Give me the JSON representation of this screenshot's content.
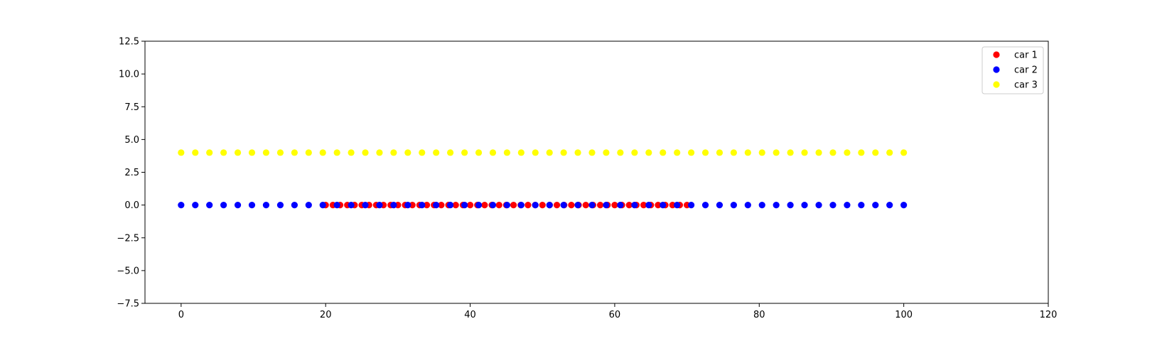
{
  "chart_data": {
    "type": "scatter",
    "title": "",
    "xlabel": "",
    "ylabel": "",
    "xlim": [
      -5,
      120
    ],
    "ylim": [
      -7.5,
      12.5
    ],
    "xticks": [
      0,
      20,
      40,
      60,
      80,
      100,
      120
    ],
    "yticks": [
      -7.5,
      -5.0,
      -2.5,
      0.0,
      2.5,
      5.0,
      7.5,
      10.0,
      12.5
    ],
    "xtick_labels": [
      "0",
      "20",
      "40",
      "60",
      "80",
      "100",
      "120"
    ],
    "ytick_labels": [
      "−7.5",
      "−5.0",
      "−2.5",
      "0.0",
      "2.5",
      "5.0",
      "7.5",
      "10.0",
      "12.5"
    ],
    "grid": false,
    "legend_position": "top-right",
    "series": [
      {
        "name": "car 1",
        "color": "#ff0000",
        "x": [
          20,
          21,
          22,
          23,
          24,
          25,
          26,
          27,
          28,
          29,
          30,
          31,
          32,
          33,
          34,
          35,
          36,
          37,
          38,
          39,
          40,
          41,
          42,
          43,
          44,
          45,
          46,
          47,
          48,
          49,
          50,
          51,
          52,
          53,
          54,
          55,
          56,
          57,
          58,
          59,
          60,
          61,
          62,
          63,
          64,
          65,
          66,
          67,
          68,
          69,
          70
        ],
        "y": [
          0,
          0,
          0,
          0,
          0,
          0,
          0,
          0,
          0,
          0,
          0,
          0,
          0,
          0,
          0,
          0,
          0,
          0,
          0,
          0,
          0,
          0,
          0,
          0,
          0,
          0,
          0,
          0,
          0,
          0,
          0,
          0,
          0,
          0,
          0,
          0,
          0,
          0,
          0,
          0,
          0,
          0,
          0,
          0,
          0,
          0,
          0,
          0,
          0,
          0,
          0
        ]
      },
      {
        "name": "car 2",
        "color": "#0000ff",
        "x": [
          0,
          1.96,
          3.92,
          5.88,
          7.84,
          9.8,
          11.76,
          13.73,
          15.69,
          17.65,
          19.61,
          21.57,
          23.53,
          25.49,
          27.45,
          29.41,
          31.37,
          33.33,
          35.29,
          37.25,
          39.22,
          41.18,
          43.14,
          45.1,
          47.06,
          49.02,
          50.98,
          52.94,
          54.9,
          56.86,
          58.82,
          60.78,
          62.75,
          64.71,
          66.67,
          68.63,
          70.59,
          72.55,
          74.51,
          76.47,
          78.43,
          80.39,
          82.35,
          84.31,
          86.27,
          88.24,
          90.2,
          92.16,
          94.12,
          96.08,
          98.04,
          100
        ],
        "y": [
          0,
          0,
          0,
          0,
          0,
          0,
          0,
          0,
          0,
          0,
          0,
          0,
          0,
          0,
          0,
          0,
          0,
          0,
          0,
          0,
          0,
          0,
          0,
          0,
          0,
          0,
          0,
          0,
          0,
          0,
          0,
          0,
          0,
          0,
          0,
          0,
          0,
          0,
          0,
          0,
          0,
          0,
          0,
          0,
          0,
          0,
          0,
          0,
          0,
          0,
          0,
          0
        ]
      },
      {
        "name": "car 3",
        "color": "#ffff00",
        "x": [
          0,
          1.96,
          3.92,
          5.88,
          7.84,
          9.8,
          11.76,
          13.73,
          15.69,
          17.65,
          19.61,
          21.57,
          23.53,
          25.49,
          27.45,
          29.41,
          31.37,
          33.33,
          35.29,
          37.25,
          39.22,
          41.18,
          43.14,
          45.1,
          47.06,
          49.02,
          50.98,
          52.94,
          54.9,
          56.86,
          58.82,
          60.78,
          62.75,
          64.71,
          66.67,
          68.63,
          70.59,
          72.55,
          74.51,
          76.47,
          78.43,
          80.39,
          82.35,
          84.31,
          86.27,
          88.24,
          90.2,
          92.16,
          94.12,
          96.08,
          98.04,
          100
        ],
        "y": [
          4,
          4,
          4,
          4,
          4,
          4,
          4,
          4,
          4,
          4,
          4,
          4,
          4,
          4,
          4,
          4,
          4,
          4,
          4,
          4,
          4,
          4,
          4,
          4,
          4,
          4,
          4,
          4,
          4,
          4,
          4,
          4,
          4,
          4,
          4,
          4,
          4,
          4,
          4,
          4,
          4,
          4,
          4,
          4,
          4,
          4,
          4,
          4,
          4,
          4,
          4,
          4
        ]
      }
    ]
  }
}
